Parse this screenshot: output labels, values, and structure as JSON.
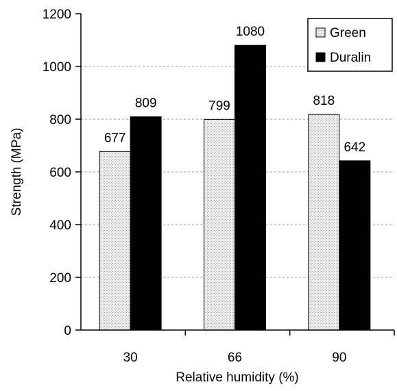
{
  "chart_data": {
    "type": "bar",
    "categories": [
      "30",
      "66",
      "90"
    ],
    "series": [
      {
        "name": "Green",
        "values": [
          677,
          799,
          818
        ],
        "color": "#e6e6e6",
        "pattern": "stipple"
      },
      {
        "name": "Duralin",
        "values": [
          809,
          1080,
          642
        ],
        "color": "#000000"
      }
    ],
    "data_labels": [
      [
        "677",
        "799",
        "818"
      ],
      [
        "809",
        "1080",
        "642"
      ]
    ],
    "xlabel": "Relative humidity (%)",
    "ylabel": "Strength (MPa)",
    "ylim": [
      0,
      1200
    ],
    "yticks": [
      "0",
      "200",
      "400",
      "600",
      "800",
      "1000",
      "1200"
    ],
    "grid": "horizontal dashed",
    "legend_position": "top-right"
  }
}
